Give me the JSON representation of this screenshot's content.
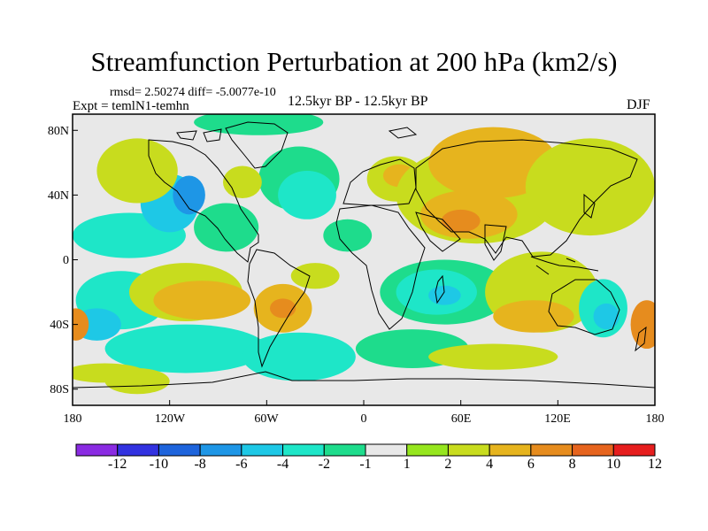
{
  "title": "Streamfunction Perturbation at 200 hPa (km2/s)",
  "stats": "rmsd= 2.50274  diff= -5.0077e-10",
  "experiment": "Expt = temlN1-temhn",
  "period": "12.5kyr BP - 12.5kyr BP",
  "season": "DJF",
  "lat_ticks": [
    "80N",
    "40N",
    "0",
    "40S",
    "80S"
  ],
  "lon_ticks": [
    "180",
    "120W",
    "60W",
    "0",
    "60E",
    "120E",
    "180"
  ],
  "colorbar": {
    "labels": [
      "-12",
      "-10",
      "-8",
      "-6",
      "-4",
      "-2",
      "-1",
      "1",
      "2",
      "4",
      "6",
      "8",
      "10",
      "12"
    ],
    "colors": [
      "#8a2be2",
      "#3232e0",
      "#1e64dc",
      "#1e96e6",
      "#1ec8e6",
      "#1ee6c8",
      "#1edc8c",
      "#e8e8e8",
      "#96e61e",
      "#c8dc1e",
      "#e6b41e",
      "#e68c1e",
      "#e6641e",
      "#e61e1e"
    ]
  },
  "map_fields": {
    "background": "#e8e8e8",
    "blobs": [
      {
        "lon": -145,
        "lat": 15,
        "rx": 35,
        "ry": 14,
        "value": -4
      },
      {
        "lon": -120,
        "lat": 35,
        "rx": 18,
        "ry": 18,
        "value": -6
      },
      {
        "lon": -108,
        "lat": 40,
        "rx": 10,
        "ry": 12,
        "value": -8
      },
      {
        "lon": -85,
        "lat": 20,
        "rx": 20,
        "ry": 15,
        "value": -2
      },
      {
        "lon": -40,
        "lat": 50,
        "rx": 25,
        "ry": 20,
        "value": -2
      },
      {
        "lon": -35,
        "lat": 40,
        "rx": 18,
        "ry": 15,
        "value": -4
      },
      {
        "lon": -10,
        "lat": 15,
        "rx": 15,
        "ry": 10,
        "value": -2
      },
      {
        "lon": -65,
        "lat": 85,
        "rx": 40,
        "ry": 8,
        "value": -2
      },
      {
        "lon": -75,
        "lat": 48,
        "rx": 12,
        "ry": 10,
        "value": 2
      },
      {
        "lon": -140,
        "lat": 55,
        "rx": 25,
        "ry": 20,
        "value": 2
      },
      {
        "lon": 20,
        "lat": 50,
        "rx": 18,
        "ry": 14,
        "value": 2
      },
      {
        "lon": 22,
        "lat": 52,
        "rx": 10,
        "ry": 7,
        "value": 4
      },
      {
        "lon": 70,
        "lat": 40,
        "rx": 50,
        "ry": 30,
        "value": 2
      },
      {
        "lon": 65,
        "lat": 28,
        "rx": 30,
        "ry": 15,
        "value": 4
      },
      {
        "lon": 60,
        "lat": 24,
        "rx": 12,
        "ry": 7,
        "value": 6
      },
      {
        "lon": 80,
        "lat": 60,
        "rx": 40,
        "ry": 22,
        "value": 4
      },
      {
        "lon": 140,
        "lat": 45,
        "rx": 40,
        "ry": 30,
        "value": 2
      },
      {
        "lon": -150,
        "lat": -25,
        "rx": 28,
        "ry": 18,
        "value": -4
      },
      {
        "lon": -165,
        "lat": -40,
        "rx": 15,
        "ry": 10,
        "value": -6
      },
      {
        "lon": -110,
        "lat": -20,
        "rx": 35,
        "ry": 18,
        "value": 2
      },
      {
        "lon": -100,
        "lat": -25,
        "rx": 30,
        "ry": 12,
        "value": 4
      },
      {
        "lon": -50,
        "lat": -30,
        "rx": 18,
        "ry": 15,
        "value": 4
      },
      {
        "lon": -50,
        "lat": -30,
        "rx": 8,
        "ry": 6,
        "value": 6
      },
      {
        "lon": -30,
        "lat": -10,
        "rx": 15,
        "ry": 8,
        "value": 2
      },
      {
        "lon": -110,
        "lat": -55,
        "rx": 50,
        "ry": 15,
        "value": -4
      },
      {
        "lon": -40,
        "lat": -60,
        "rx": 35,
        "ry": 15,
        "value": -4
      },
      {
        "lon": 50,
        "lat": -20,
        "rx": 40,
        "ry": 20,
        "value": -2
      },
      {
        "lon": 45,
        "lat": -20,
        "rx": 25,
        "ry": 14,
        "value": -4
      },
      {
        "lon": 50,
        "lat": -22,
        "rx": 10,
        "ry": 6,
        "value": -6
      },
      {
        "lon": 30,
        "lat": -55,
        "rx": 35,
        "ry": 12,
        "value": -2
      },
      {
        "lon": 110,
        "lat": -20,
        "rx": 35,
        "ry": 25,
        "value": 2
      },
      {
        "lon": 105,
        "lat": -35,
        "rx": 25,
        "ry": 10,
        "value": 4
      },
      {
        "lon": 148,
        "lat": -30,
        "rx": 15,
        "ry": 18,
        "value": -4
      },
      {
        "lon": 150,
        "lat": -35,
        "rx": 8,
        "ry": 8,
        "value": -6
      },
      {
        "lon": 175,
        "lat": -40,
        "rx": 10,
        "ry": 15,
        "value": 6
      },
      {
        "lon": -178,
        "lat": -40,
        "rx": 8,
        "ry": 10,
        "value": 6
      },
      {
        "lon": 80,
        "lat": -60,
        "rx": 40,
        "ry": 8,
        "value": 2
      },
      {
        "lon": -160,
        "lat": -70,
        "rx": 25,
        "ry": 6,
        "value": 2
      },
      {
        "lon": -140,
        "lat": -75,
        "rx": 20,
        "ry": 8,
        "value": 2
      }
    ]
  }
}
